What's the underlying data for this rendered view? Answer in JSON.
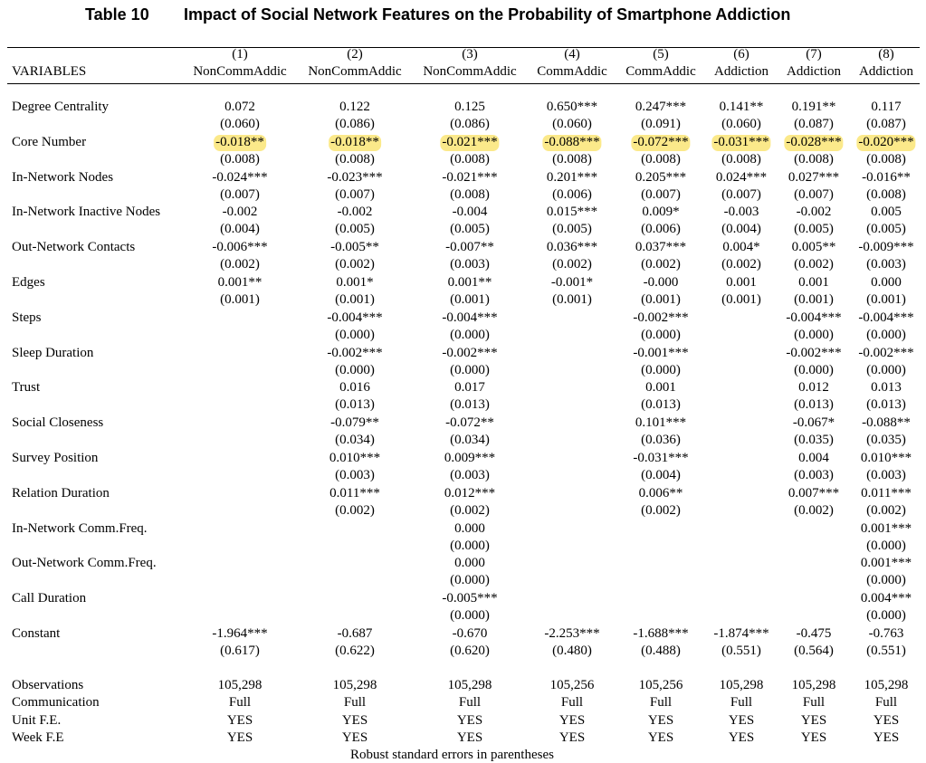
{
  "title": {
    "number": "Table 10",
    "text": "Impact of Social Network Features on the Probability of Smartphone Addiction"
  },
  "header": {
    "variables_label": "VARIABLES",
    "col_numbers": [
      "(1)",
      "(2)",
      "(3)",
      "(4)",
      "(5)",
      "(6)",
      "(7)",
      "(8)"
    ],
    "col_names": [
      "NonCommAddic",
      "NonCommAddic",
      "NonCommAddic",
      "CommAddic",
      "CommAddic",
      "Addiction",
      "Addiction",
      "Addiction"
    ]
  },
  "rows": [
    {
      "label": "Degree Centrality",
      "coef": [
        "0.072",
        "0.122",
        "0.125",
        "0.650***",
        "0.247***",
        "0.141**",
        "0.191**",
        "0.117"
      ],
      "se": [
        "(0.060)",
        "(0.086)",
        "(0.086)",
        "(0.060)",
        "(0.091)",
        "(0.060)",
        "(0.087)",
        "(0.087)"
      ]
    },
    {
      "label": "Core Number",
      "highlight": true,
      "coef": [
        "-0.018**",
        "-0.018**",
        "-0.021***",
        "-0.088***",
        "-0.072***",
        "-0.031***",
        "-0.028***",
        "-0.020***"
      ],
      "se": [
        "(0.008)",
        "(0.008)",
        "(0.008)",
        "(0.008)",
        "(0.008)",
        "(0.008)",
        "(0.008)",
        "(0.008)"
      ]
    },
    {
      "label": "In-Network Nodes",
      "coef": [
        "-0.024***",
        "-0.023***",
        "-0.021***",
        "0.201***",
        "0.205***",
        "0.024***",
        "0.027***",
        "-0.016**"
      ],
      "se": [
        "(0.007)",
        "(0.007)",
        "(0.008)",
        "(0.006)",
        "(0.007)",
        "(0.007)",
        "(0.007)",
        "(0.008)"
      ]
    },
    {
      "label": "In-Network Inactive Nodes",
      "coef": [
        "-0.002",
        "-0.002",
        "-0.004",
        "0.015***",
        "0.009*",
        "-0.003",
        "-0.002",
        "0.005"
      ],
      "se": [
        "(0.004)",
        "(0.005)",
        "(0.005)",
        "(0.005)",
        "(0.006)",
        "(0.004)",
        "(0.005)",
        "(0.005)"
      ]
    },
    {
      "label": "Out-Network Contacts",
      "coef": [
        "-0.006***",
        "-0.005**",
        "-0.007**",
        "0.036***",
        "0.037***",
        "0.004*",
        "0.005**",
        "-0.009***"
      ],
      "se": [
        "(0.002)",
        "(0.002)",
        "(0.003)",
        "(0.002)",
        "(0.002)",
        "(0.002)",
        "(0.002)",
        "(0.003)"
      ]
    },
    {
      "label": "Edges",
      "coef": [
        "0.001**",
        "0.001*",
        "0.001**",
        "-0.001*",
        "-0.000",
        "0.001",
        "0.001",
        "0.000"
      ],
      "se": [
        "(0.001)",
        "(0.001)",
        "(0.001)",
        "(0.001)",
        "(0.001)",
        "(0.001)",
        "(0.001)",
        "(0.001)"
      ]
    },
    {
      "label": "Steps",
      "coef": [
        "",
        "-0.004***",
        "-0.004***",
        "",
        "-0.002***",
        "",
        "-0.004***",
        "-0.004***"
      ],
      "se": [
        "",
        "(0.000)",
        "(0.000)",
        "",
        "(0.000)",
        "",
        "(0.000)",
        "(0.000)"
      ]
    },
    {
      "label": "Sleep Duration",
      "coef": [
        "",
        "-0.002***",
        "-0.002***",
        "",
        "-0.001***",
        "",
        "-0.002***",
        "-0.002***"
      ],
      "se": [
        "",
        "(0.000)",
        "(0.000)",
        "",
        "(0.000)",
        "",
        "(0.000)",
        "(0.000)"
      ]
    },
    {
      "label": "Trust",
      "coef": [
        "",
        "0.016",
        "0.017",
        "",
        "0.001",
        "",
        "0.012",
        "0.013"
      ],
      "se": [
        "",
        "(0.013)",
        "(0.013)",
        "",
        "(0.013)",
        "",
        "(0.013)",
        "(0.013)"
      ]
    },
    {
      "label": "Social Closeness",
      "coef": [
        "",
        "-0.079**",
        "-0.072**",
        "",
        "0.101***",
        "",
        "-0.067*",
        "-0.088**"
      ],
      "se": [
        "",
        "(0.034)",
        "(0.034)",
        "",
        "(0.036)",
        "",
        "(0.035)",
        "(0.035)"
      ]
    },
    {
      "label": "Survey Position",
      "coef": [
        "",
        "0.010***",
        "0.009***",
        "",
        "-0.031***",
        "",
        "0.004",
        "0.010***"
      ],
      "se": [
        "",
        "(0.003)",
        "(0.003)",
        "",
        "(0.004)",
        "",
        "(0.003)",
        "(0.003)"
      ]
    },
    {
      "label": "Relation Duration",
      "coef": [
        "",
        "0.011***",
        "0.012***",
        "",
        "0.006**",
        "",
        "0.007***",
        "0.011***"
      ],
      "se": [
        "",
        "(0.002)",
        "(0.002)",
        "",
        "(0.002)",
        "",
        "(0.002)",
        "(0.002)"
      ]
    },
    {
      "label": "In-Network Comm.Freq.",
      "coef": [
        "",
        "",
        "0.000",
        "",
        "",
        "",
        "",
        "0.001***"
      ],
      "se": [
        "",
        "",
        "(0.000)",
        "",
        "",
        "",
        "",
        "(0.000)"
      ]
    },
    {
      "label": "Out-Network Comm.Freq.",
      "coef": [
        "",
        "",
        "0.000",
        "",
        "",
        "",
        "",
        "0.001***"
      ],
      "se": [
        "",
        "",
        "(0.000)",
        "",
        "",
        "",
        "",
        "(0.000)"
      ]
    },
    {
      "label": "Call Duration",
      "coef": [
        "",
        "",
        "-0.005***",
        "",
        "",
        "",
        "",
        "0.004***"
      ],
      "se": [
        "",
        "",
        "(0.000)",
        "",
        "",
        "",
        "",
        "(0.000)"
      ]
    },
    {
      "label": "Constant",
      "coef": [
        "-1.964***",
        "-0.687",
        "-0.670",
        "-2.253***",
        "-1.688***",
        "-1.874***",
        "-0.475",
        "-0.763"
      ],
      "se": [
        "(0.617)",
        "(0.622)",
        "(0.620)",
        "(0.480)",
        "(0.488)",
        "(0.551)",
        "(0.564)",
        "(0.551)"
      ]
    }
  ],
  "stats": [
    {
      "label": "Observations",
      "values": [
        "105,298",
        "105,298",
        "105,298",
        "105,256",
        "105,256",
        "105,298",
        "105,298",
        "105,298"
      ]
    },
    {
      "label": "Communication",
      "values": [
        "Full",
        "Full",
        "Full",
        "Full",
        "Full",
        "Full",
        "Full",
        "Full"
      ]
    },
    {
      "label": "Unit F.E.",
      "values": [
        "YES",
        "YES",
        "YES",
        "YES",
        "YES",
        "YES",
        "YES",
        "YES"
      ]
    },
    {
      "label": "Week F.E",
      "values": [
        "YES",
        "YES",
        "YES",
        "YES",
        "YES",
        "YES",
        "YES",
        "YES"
      ]
    }
  ],
  "footnote": "Robust standard errors in parentheses",
  "highlight_color": "#fbe98a"
}
